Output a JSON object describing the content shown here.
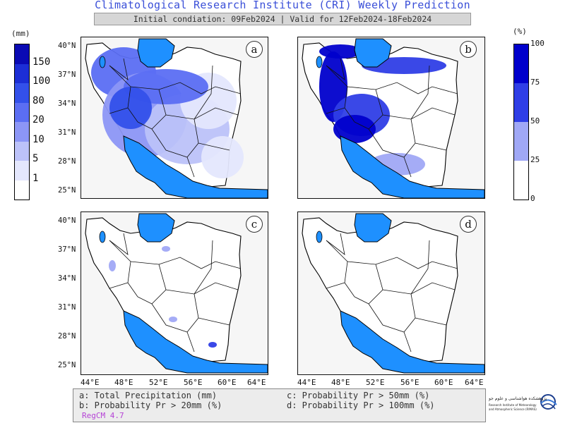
{
  "header": {
    "title": "Climatological Research Institute (CRI) Weekly Prediction",
    "subtitle": "Initial condiation: 09Feb2024 | Valid for 12Feb2024-18Feb2024"
  },
  "legend_left": {
    "unit": "(mm)",
    "labels": [
      "150",
      "100",
      "80",
      "20",
      "10",
      "5",
      "1"
    ],
    "colors": [
      "#0a0ab4",
      "#1c2ed6",
      "#3350ea",
      "#5b6ef3",
      "#8c96f6",
      "#bcc2f9",
      "#e4e7fd",
      "#ffffff"
    ]
  },
  "legend_right": {
    "unit": "(%)",
    "labels": [
      "100",
      "75",
      "50",
      "25",
      "0"
    ],
    "colors": [
      "#0000cc",
      "#2f3ee6",
      "#a0a8f6",
      "#ffffff"
    ]
  },
  "panels": [
    {
      "letter": "a"
    },
    {
      "letter": "b"
    },
    {
      "letter": "c"
    },
    {
      "letter": "d"
    }
  ],
  "lat_labels": [
    "40°N",
    "37°N",
    "34°N",
    "31°N",
    "28°N",
    "25°N"
  ],
  "lon_labels": [
    "44°E",
    "48°E",
    "52°E",
    "56°E",
    "60°E",
    "64°E"
  ],
  "caption": {
    "a": "a: Total Precipitation (mm)",
    "b": "b: Probability Pr > 20mm (%)",
    "c": "c: Probability Pr > 50mm (%)",
    "d": "d: Probability Pr > 100mm (%)",
    "model": "RegCM 4.7"
  },
  "logo": {
    "text_fa": "پژوهشکده هواشناسی و علوم جو",
    "text_en_1": "Research Institute of Meteorology",
    "text_en_2": "and Atmospheric Science (RIMAS)"
  },
  "colors": {
    "water": "#1e90ff",
    "title": "#3a4fd8",
    "model_label": "#b542d6"
  }
}
